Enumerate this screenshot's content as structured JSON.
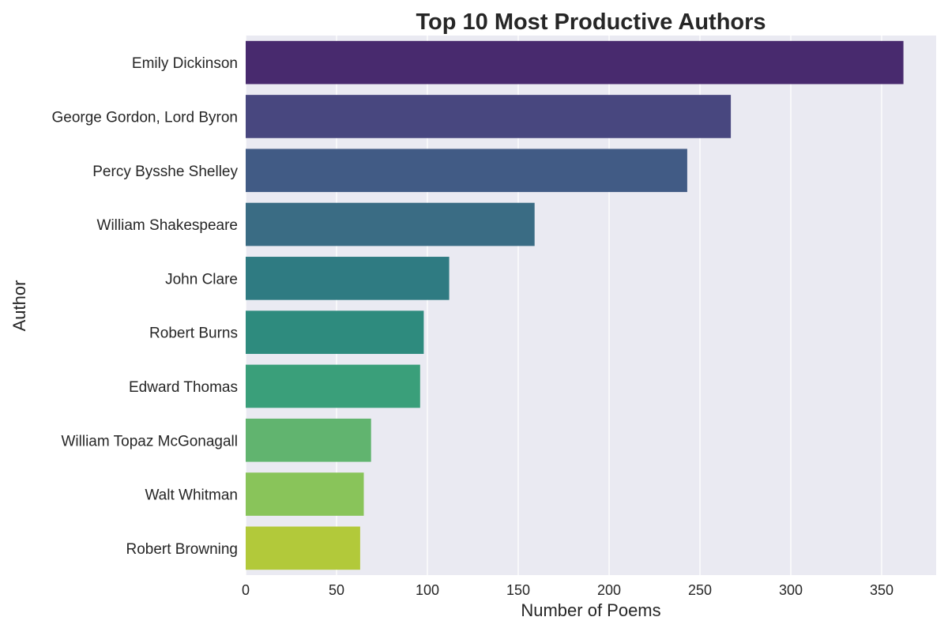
{
  "chart_data": {
    "type": "bar",
    "orientation": "horizontal",
    "title": "Top 10 Most Productive Authors",
    "xlabel": "Number of Poems",
    "ylabel": "Author",
    "categories": [
      "Emily Dickinson",
      "George Gordon, Lord Byron",
      "Percy Bysshe Shelley",
      "William Shakespeare",
      "John Clare",
      "Robert Burns",
      "Edward Thomas",
      "William Topaz McGonagall",
      "Walt Whitman",
      "Robert Browning"
    ],
    "values": [
      362,
      267,
      243,
      159,
      112,
      98,
      96,
      69,
      65,
      63
    ],
    "colors": [
      "#482a6e",
      "#48477f",
      "#415b85",
      "#3a6c84",
      "#2f7b82",
      "#2e8b7e",
      "#3a9f7a",
      "#61b46f",
      "#89c45a",
      "#b2c93a"
    ],
    "xlim": [
      0,
      380
    ],
    "xticks": [
      0,
      50,
      100,
      150,
      200,
      250,
      300,
      350
    ],
    "grid": true,
    "grid_axis": "x",
    "background": "#eaeaf2",
    "legend": "none"
  }
}
